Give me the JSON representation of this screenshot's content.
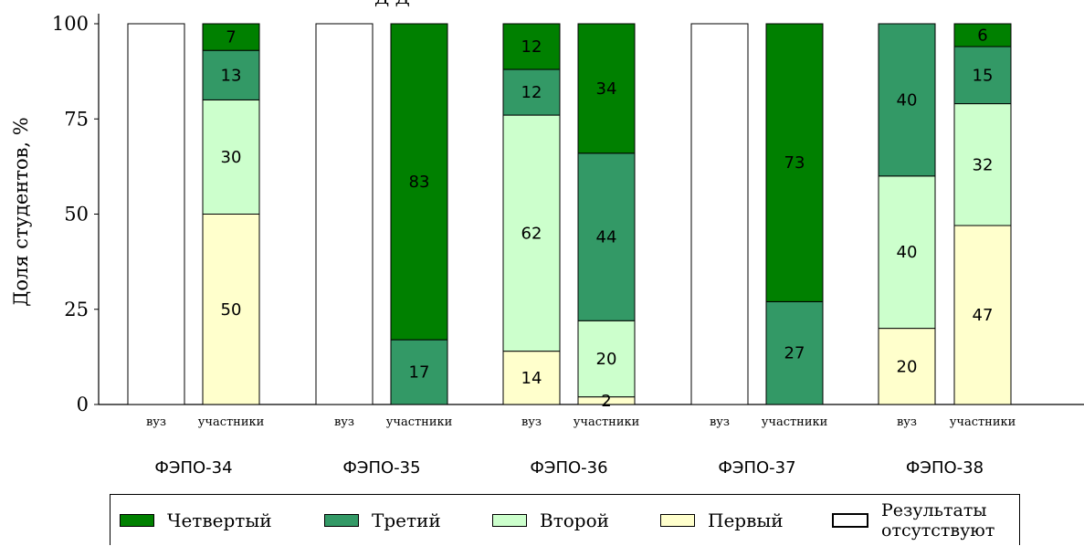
{
  "chart_data": {
    "type": "bar",
    "stacked": true,
    "title_fragment": "Д Д",
    "ylabel": "Доля студентов, %",
    "ylim": [
      0,
      100
    ],
    "yticks": [
      0,
      25,
      50,
      75,
      100
    ],
    "groups": [
      "ФЭПО-34",
      "ФЭПО-35",
      "ФЭПО-36",
      "ФЭПО-37",
      "ФЭПО-38"
    ],
    "subcategories": [
      "вуз",
      "участники"
    ],
    "bars": [
      {
        "group": "ФЭПО-34",
        "sub": "вуз",
        "missing": true,
        "values": {}
      },
      {
        "group": "ФЭПО-34",
        "sub": "участники",
        "missing": false,
        "values": {
          "Первый": 50,
          "Второй": 30,
          "Третий": 13,
          "Четвертый": 7
        }
      },
      {
        "group": "ФЭПО-35",
        "sub": "вуз",
        "missing": true,
        "values": {}
      },
      {
        "group": "ФЭПО-35",
        "sub": "участники",
        "missing": false,
        "values": {
          "Третий": 17,
          "Четвертый": 83
        }
      },
      {
        "group": "ФЭПО-36",
        "sub": "вуз",
        "missing": false,
        "values": {
          "Первый": 14,
          "Второй": 62,
          "Третий": 12,
          "Четвертый": 12
        }
      },
      {
        "group": "ФЭПО-36",
        "sub": "участники",
        "missing": false,
        "values": {
          "Первый": 2,
          "Второй": 20,
          "Третий": 44,
          "Четвертый": 34
        }
      },
      {
        "group": "ФЭПО-37",
        "sub": "вуз",
        "missing": true,
        "values": {}
      },
      {
        "group": "ФЭПО-37",
        "sub": "участники",
        "missing": false,
        "values": {
          "Третий": 27,
          "Четвертый": 73
        }
      },
      {
        "group": "ФЭПО-38",
        "sub": "вуз",
        "missing": false,
        "values": {
          "Первый": 20,
          "Второй": 40,
          "Третий": 40
        }
      },
      {
        "group": "ФЭПО-38",
        "sub": "участники",
        "missing": false,
        "values": {
          "Первый": 47,
          "Второй": 32,
          "Третий": 15,
          "Четвертый": 6
        }
      }
    ],
    "stack_order": [
      "Первый",
      "Второй",
      "Третий",
      "Четвертый"
    ],
    "colors": {
      "Первый": "#ffffcc",
      "Второй": "#ccffcc",
      "Третий": "#339966",
      "Четвертый": "#008000",
      "Результаты отсутствуют": "#ffffff"
    },
    "legend": {
      "placement": "bottom",
      "entries": [
        {
          "label": "Четвертый",
          "key": "Четвертый"
        },
        {
          "label": "Третий",
          "key": "Третий"
        },
        {
          "label": "Второй",
          "key": "Второй"
        },
        {
          "label": "Первый",
          "key": "Первый"
        },
        {
          "label_line1": "Результаты",
          "label_line2": "отсутствуют",
          "key": "Результаты отсутствуют"
        }
      ]
    },
    "grid": false
  }
}
